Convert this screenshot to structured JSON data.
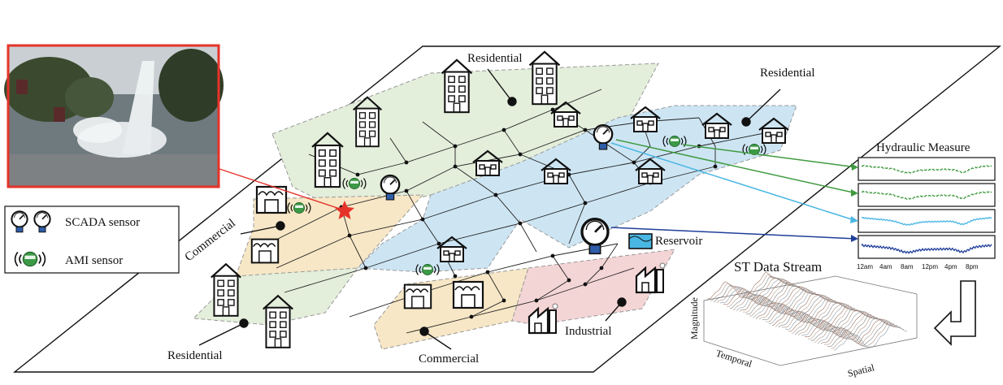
{
  "labels": {
    "residential_top": "Residential",
    "residential_right": "Residential",
    "residential_bottom": "Residential",
    "commercial_left": "Commercial",
    "commercial_bottom": "Commercial",
    "industrial": "Industrial",
    "reservoir": "Reservoir"
  },
  "legend": {
    "scada": "SCADA sensor",
    "ami": "AMI sensor",
    "ami_badge": "AMI"
  },
  "hydraulic": {
    "title": "Hydraulic Measure",
    "ticks": [
      "12am",
      "4am",
      "8am",
      "12pm",
      "4pm",
      "8pm"
    ],
    "trace_colors": [
      "#3f9a3f",
      "#3f9a3f",
      "#49b6e3",
      "#1f3e9a"
    ]
  },
  "stream": {
    "title": "ST Data Stream",
    "axis_magnitude": "Magnitude",
    "axis_temporal": "Temporal",
    "axis_spatial": "Spatial"
  },
  "colors": {
    "residential_green": "#e3eedb",
    "service_blue": "#cde5f3",
    "commercial_tan": "#f7e7c6",
    "industrial_pink": "#f4d5d6",
    "event_red": "#e5332a",
    "scada_blue": "#2f5da8",
    "ami_green": "#3c9a46"
  }
}
